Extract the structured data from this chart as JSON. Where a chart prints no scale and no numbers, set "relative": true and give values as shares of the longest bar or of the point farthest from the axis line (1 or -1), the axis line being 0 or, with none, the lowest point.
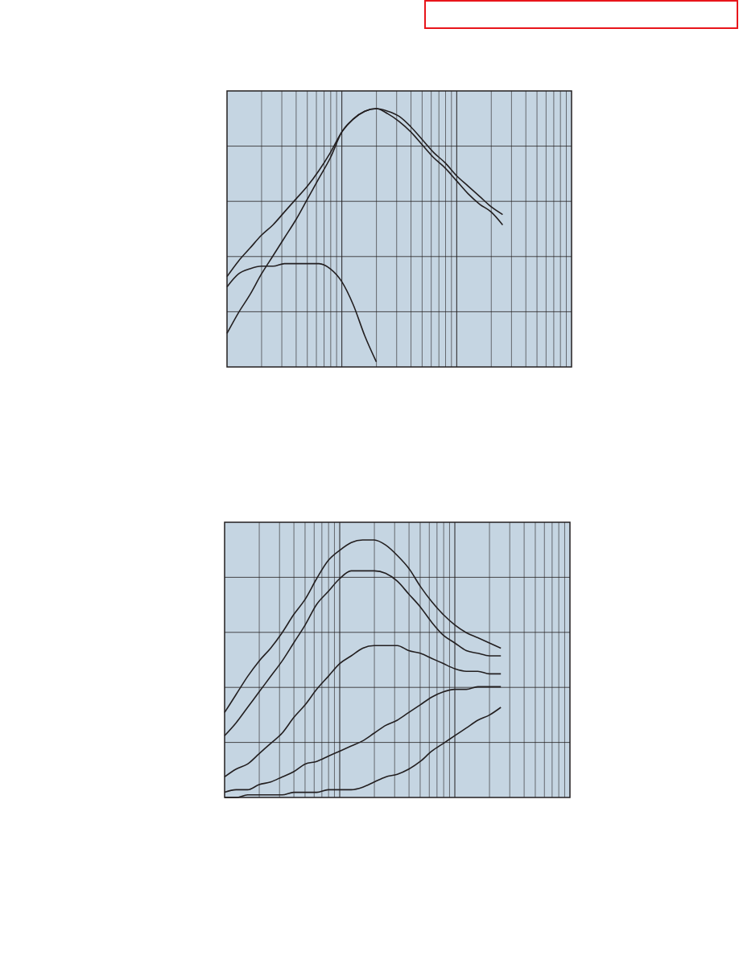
{
  "chart_data": [
    {
      "type": "line",
      "relative": true,
      "grid": true,
      "categories": [
        null,
        null,
        null,
        null,
        null,
        null,
        null,
        null,
        null,
        null,
        null,
        null,
        null,
        null,
        null,
        null,
        null,
        null,
        null,
        null,
        null,
        null,
        null,
        null,
        null,
        null,
        null,
        null,
        null,
        null,
        null
      ],
      "series": [
        {
          "color": "#231f20",
          "values": [
            0.35,
            0.41,
            0.46,
            0.51,
            0.55,
            0.6,
            0.65,
            0.7,
            0.76,
            0.83,
            0.91,
            0.96,
            0.99,
            1,
            0.99,
            0.97,
            0.93,
            0.88,
            0.83,
            0.79,
            0.74,
            0.7,
            0.66,
            0.62,
            0.59,
            null,
            null,
            null,
            null,
            null,
            null
          ]
        },
        {
          "color": "#231f20",
          "values": [
            0.13,
            0.21,
            0.28,
            0.36,
            0.43,
            0.5,
            0.57,
            0.65,
            0.73,
            0.81,
            0.91,
            0.96,
            0.99,
            1,
            0.98,
            0.95,
            0.91,
            0.86,
            0.81,
            0.77,
            0.72,
            0.67,
            0.63,
            0.6,
            0.55,
            null,
            null,
            null,
            null,
            null,
            null
          ]
        },
        {
          "color": "#231f20",
          "values": [
            0.31,
            0.36,
            0.38,
            0.39,
            0.39,
            0.4,
            0.4,
            0.4,
            0.4,
            0.38,
            0.33,
            0.24,
            0.12,
            0.02,
            null,
            null,
            null,
            null,
            null,
            null,
            null,
            null,
            null,
            null,
            null,
            null,
            null,
            null,
            null,
            null,
            null
          ]
        }
      ]
    },
    {
      "type": "line",
      "relative": true,
      "grid": true,
      "categories": [
        null,
        null,
        null,
        null,
        null,
        null,
        null,
        null,
        null,
        null,
        null,
        null,
        null,
        null,
        null,
        null,
        null,
        null,
        null,
        null,
        null,
        null,
        null,
        null,
        null,
        null,
        null,
        null,
        null,
        null,
        null
      ],
      "series": [
        {
          "color": "#231f20",
          "values": [
            0.33,
            0.4,
            0.47,
            0.53,
            0.58,
            0.64,
            0.71,
            0.77,
            0.85,
            0.92,
            0.96,
            0.99,
            1,
            1,
            0.98,
            0.94,
            0.89,
            0.82,
            0.76,
            0.71,
            0.67,
            0.64,
            0.62,
            0.6,
            0.58,
            null,
            null,
            null,
            null,
            null,
            null
          ]
        },
        {
          "color": "#231f20",
          "values": [
            0.24,
            0.29,
            0.35,
            0.41,
            0.47,
            0.53,
            0.6,
            0.67,
            0.75,
            0.8,
            0.85,
            0.88,
            0.88,
            0.88,
            0.87,
            0.84,
            0.79,
            0.74,
            0.68,
            0.63,
            0.6,
            0.57,
            0.56,
            0.55,
            0.55,
            null,
            null,
            null,
            null,
            null,
            null
          ]
        },
        {
          "color": "#231f20",
          "values": [
            0.08,
            0.11,
            0.13,
            0.17,
            0.21,
            0.25,
            0.31,
            0.36,
            0.42,
            0.47,
            0.52,
            0.55,
            0.58,
            0.59,
            0.59,
            0.59,
            0.57,
            0.56,
            0.54,
            0.52,
            0.5,
            0.49,
            0.49,
            0.48,
            0.48,
            null,
            null,
            null,
            null,
            null,
            null
          ]
        },
        {
          "color": "#231f20",
          "values": [
            0.02,
            0.03,
            0.03,
            0.05,
            0.06,
            0.08,
            0.1,
            0.13,
            0.14,
            0.16,
            0.18,
            0.2,
            0.22,
            0.25,
            0.28,
            0.3,
            0.33,
            0.36,
            0.39,
            0.41,
            0.42,
            0.42,
            0.43,
            0.43,
            0.43,
            null,
            null,
            null,
            null,
            null,
            null
          ]
        },
        {
          "color": "#231f20",
          "values": [
            0,
            0,
            0.01,
            0.01,
            0.01,
            0.01,
            0.02,
            0.02,
            0.02,
            0.03,
            0.03,
            0.03,
            0.04,
            0.06,
            0.08,
            0.09,
            0.11,
            0.14,
            0.18,
            0.21,
            0.24,
            0.27,
            0.3,
            0.32,
            0.35,
            null,
            null,
            null,
            null,
            null,
            null
          ]
        }
      ]
    }
  ]
}
